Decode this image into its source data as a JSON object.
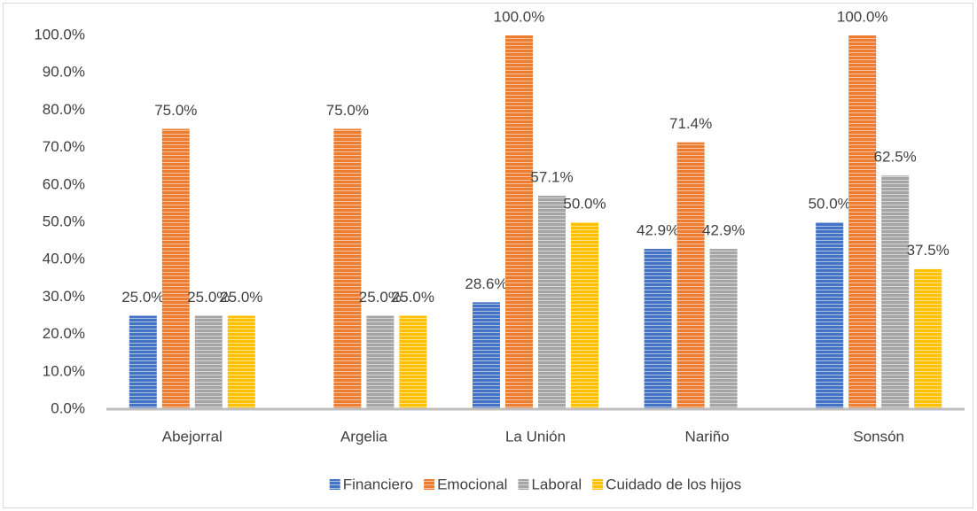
{
  "chart_data": {
    "type": "bar",
    "categories": [
      "Abejorral",
      "Argelia",
      "La Unión",
      "Nariño",
      "Sonsón"
    ],
    "series": [
      {
        "name": "Financiero",
        "color": "#4472c4",
        "values": [
          25.0,
          null,
          28.6,
          42.9,
          50.0
        ],
        "value_labels": [
          "25.0%",
          null,
          "28.6%",
          "42.9%",
          "50.0%"
        ]
      },
      {
        "name": "Emocional",
        "color": "#ed7d31",
        "values": [
          75.0,
          75.0,
          100.0,
          71.4,
          100.0
        ],
        "value_labels": [
          "75.0%",
          "75.0%",
          "100.0%",
          "71.4%",
          "100.0%"
        ]
      },
      {
        "name": "Laboral",
        "color": "#a5a5a5",
        "values": [
          25.0,
          25.0,
          57.1,
          42.9,
          62.5
        ],
        "value_labels": [
          "25.0%",
          "25.0%",
          "57.1%",
          "42.9%",
          "62.5%"
        ]
      },
      {
        "name": "Cuidado de los hijos",
        "color": "#ffc000",
        "values": [
          25.0,
          25.0,
          50.0,
          null,
          37.5
        ],
        "value_labels": [
          "25.0%",
          "25.0%",
          "50.0%",
          null,
          "37.5%"
        ]
      }
    ],
    "ylim": [
      0,
      100
    ],
    "yticks": [
      {
        "value": 0,
        "label": "0.0%"
      },
      {
        "value": 10,
        "label": "10.0%"
      },
      {
        "value": 20,
        "label": "20.0%"
      },
      {
        "value": 30,
        "label": "30.0%"
      },
      {
        "value": 40,
        "label": "40.0%"
      },
      {
        "value": 50,
        "label": "50.0%"
      },
      {
        "value": 60,
        "label": "60.0%"
      },
      {
        "value": 70,
        "label": "70.0%"
      },
      {
        "value": 80,
        "label": "80.0%"
      },
      {
        "value": 90,
        "label": "90.0%"
      },
      {
        "value": 100,
        "label": "100.0%"
      }
    ],
    "grid": false,
    "legend": "bottom"
  }
}
